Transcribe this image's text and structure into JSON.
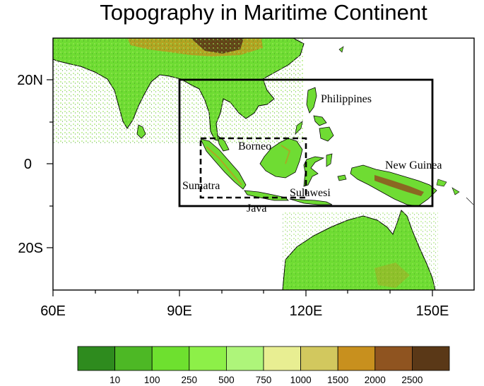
{
  "title": "Topography in Maritime Continent",
  "axes": {
    "x_ticks": [
      "60E",
      "90E",
      "120E",
      "150E"
    ],
    "y_ticks": [
      "20N",
      "0",
      "20S"
    ]
  },
  "place_labels": {
    "philippines": "Philippines",
    "borneo": "Borneo",
    "new_guinea": "New Guinea",
    "sumatra": "Sumatra",
    "sulawesi": "Sulawesi",
    "java": "Java"
  },
  "colorbar": {
    "labels": [
      "10",
      "100",
      "250",
      "500",
      "750",
      "1000",
      "1500",
      "2000",
      "2500"
    ],
    "colors": [
      "#2e8b1e",
      "#4db825",
      "#6ee02f",
      "#8df048",
      "#aef57a",
      "#e8ee92",
      "#d2c85e",
      "#c8901e",
      "#8f5420",
      "#5a3817"
    ]
  },
  "chart_data": {
    "type": "map",
    "title": "Topography in Maritime Continent",
    "xlim": [
      60,
      160
    ],
    "ylim": [
      -30,
      30
    ],
    "outer_box": {
      "lon": [
        90,
        150
      ],
      "lat": [
        -10,
        20
      ]
    },
    "inner_box_dashed": {
      "lon": [
        95,
        120
      ],
      "lat": [
        -8,
        6
      ]
    },
    "levels": [
      10,
      100,
      250,
      500,
      750,
      1000,
      1500,
      2000,
      2500
    ]
  }
}
